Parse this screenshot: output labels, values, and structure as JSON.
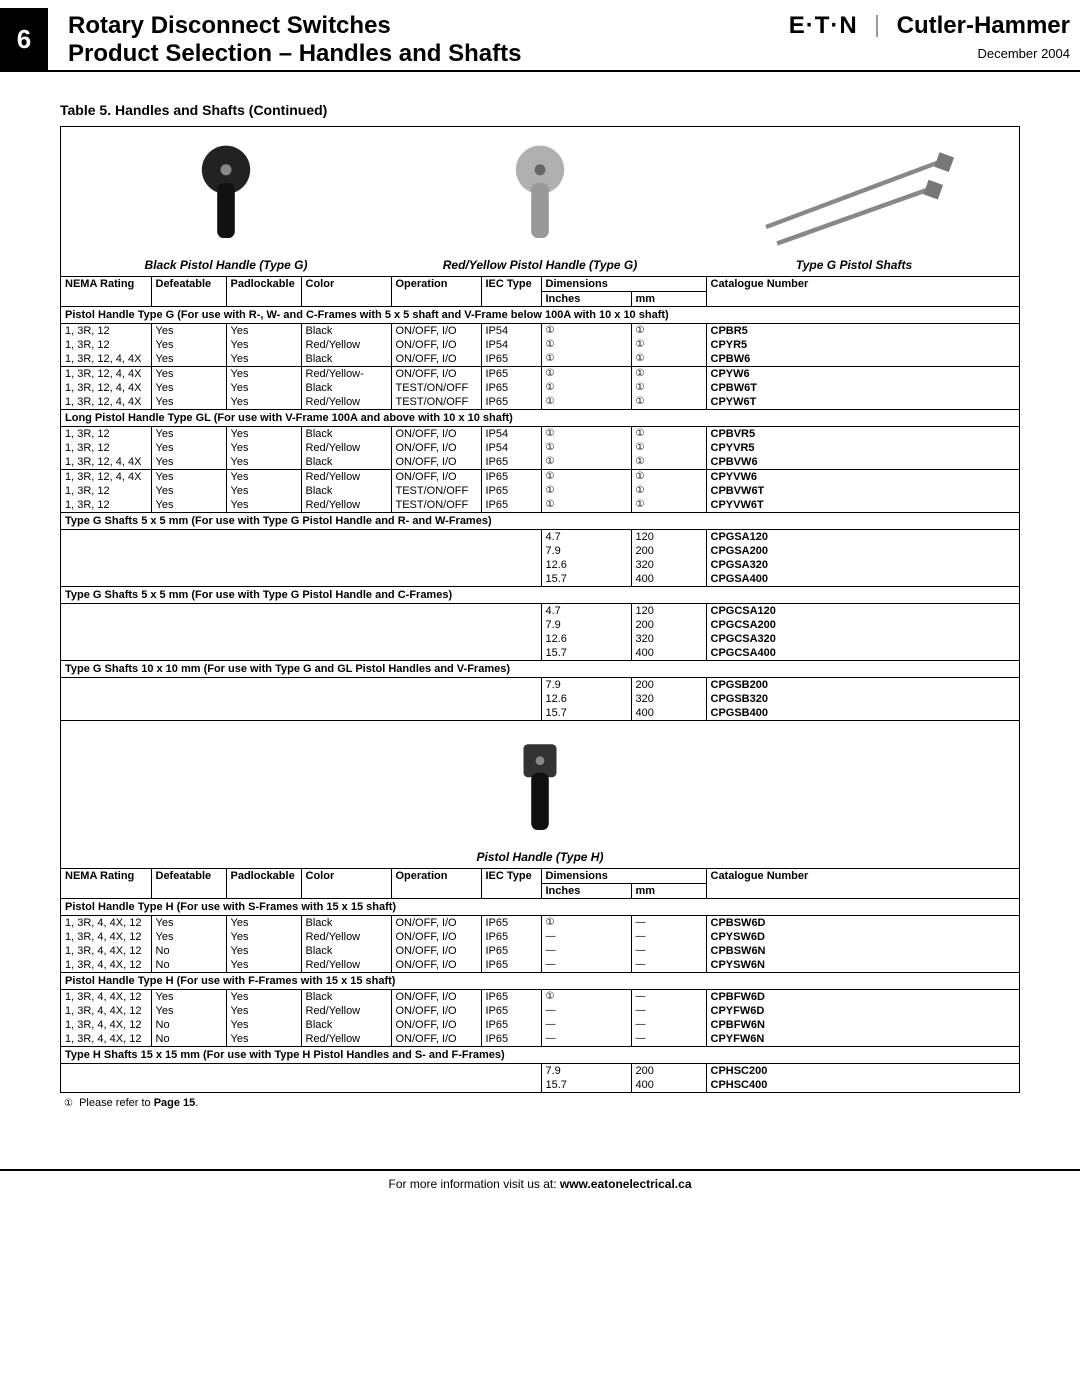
{
  "page_number": "6",
  "title_line1": "Rotary Disconnect Switches",
  "title_line2": "Product Selection – Handles and Shafts",
  "brand_eaton": "E·T·N",
  "brand_cutler": "Cutler-Hammer",
  "date": "December 2004",
  "table_title": "Table 5. Handles and Shafts (Continued)",
  "captions": {
    "black_g": "Black Pistol Handle (Type G)",
    "red_g": "Red/Yellow Pistol Handle (Type G)",
    "shafts_g": "Type G Pistol Shafts",
    "h": "Pistol Handle (Type H)"
  },
  "columns": {
    "nema": "NEMA Rating",
    "defeat": "Defeatable",
    "padlock": "Padlockable",
    "color": "Color",
    "operation": "Operation",
    "iec": "IEC Type",
    "dimensions": "Dimensions",
    "inches": "Inches",
    "mm": "mm",
    "catalogue": "Catalogue Number"
  },
  "sections": {
    "s1": "Pistol Handle Type G (For use with R-, W- and C-Frames with 5 x 5 shaft and V-Frame below 100A with 10 x 10 shaft)",
    "s2": "Long Pistol Handle Type GL (For use with V-Frame 100A and above with 10 x 10 shaft)",
    "s3": "Type G Shafts 5 x 5 mm (For use with Type G Pistol Handle and R- and W-Frames)",
    "s4": "Type G Shafts  5 x 5 mm (For use with Type G Pistol Handle and C-Frames)",
    "s5": "Type G Shafts 10 x 10 mm (For use with Type G and GL Pistol Handles and V-Frames)",
    "s6": "Pistol Handle Type H (For use with S-Frames with 15 x 15 shaft)",
    "s7": "Pistol Handle Type H (For use with F-Frames with 15 x 15 shaft)",
    "s8": "Type H Shafts 15 x 15 mm (For use with Type H Pistol Handles and S- and F-Frames)"
  },
  "circ": "①",
  "dash": "—",
  "rows_g1a": [
    {
      "nema": "1, 3R, 12",
      "def": "Yes",
      "pad": "Yes",
      "color": "Black",
      "op": "ON/OFF, I/O",
      "iec": "IP54",
      "in": "①",
      "mm": "①",
      "cat": "CPBR5"
    },
    {
      "nema": "1, 3R, 12",
      "def": "Yes",
      "pad": "Yes",
      "color": "Red/Yellow",
      "op": "ON/OFF, I/O",
      "iec": "IP54",
      "in": "①",
      "mm": "①",
      "cat": "CPYR5"
    },
    {
      "nema": "1, 3R, 12, 4, 4X",
      "def": "Yes",
      "pad": "Yes",
      "color": "Black",
      "op": "ON/OFF, I/O",
      "iec": "IP65",
      "in": "①",
      "mm": "①",
      "cat": "CPBW6"
    }
  ],
  "rows_g1b": [
    {
      "nema": "1, 3R, 12, 4, 4X",
      "def": "Yes",
      "pad": "Yes",
      "color": "Red/Yellow-",
      "op": "ON/OFF, I/O",
      "iec": "IP65",
      "in": "①",
      "mm": "①",
      "cat": "CPYW6"
    },
    {
      "nema": "1, 3R, 12, 4, 4X",
      "def": "Yes",
      "pad": "Yes",
      "color": "Black",
      "op": "TEST/ON/OFF",
      "iec": "IP65",
      "in": "①",
      "mm": "①",
      "cat": "CPBW6T"
    },
    {
      "nema": "1, 3R, 12, 4, 4X",
      "def": "Yes",
      "pad": "Yes",
      "color": "Red/Yellow",
      "op": "TEST/ON/OFF",
      "iec": "IP65",
      "in": "①",
      "mm": "①",
      "cat": "CPYW6T"
    }
  ],
  "rows_g2a": [
    {
      "nema": "1, 3R, 12",
      "def": "Yes",
      "pad": "Yes",
      "color": "Black",
      "op": "ON/OFF, I/O",
      "iec": "IP54",
      "in": "①",
      "mm": "①",
      "cat": "CPBVR5"
    },
    {
      "nema": "1, 3R, 12",
      "def": "Yes",
      "pad": "Yes",
      "color": "Red/Yellow",
      "op": "ON/OFF, I/O",
      "iec": "IP54",
      "in": "①",
      "mm": "①",
      "cat": "CPYVR5"
    },
    {
      "nema": "1, 3R, 12, 4, 4X",
      "def": "Yes",
      "pad": "Yes",
      "color": "Black",
      "op": "ON/OFF, I/O",
      "iec": "IP65",
      "in": "①",
      "mm": "①",
      "cat": "CPBVW6"
    }
  ],
  "rows_g2b": [
    {
      "nema": "1, 3R, 12, 4, 4X",
      "def": "Yes",
      "pad": "Yes",
      "color": "Red/Yellow",
      "op": "ON/OFF, I/O",
      "iec": "IP65",
      "in": "①",
      "mm": "①",
      "cat": "CPYVW6"
    },
    {
      "nema": "1, 3R, 12",
      "def": "Yes",
      "pad": "Yes",
      "color": "Black",
      "op": "TEST/ON/OFF",
      "iec": "IP65",
      "in": "①",
      "mm": "①",
      "cat": "CPBVW6T"
    },
    {
      "nema": "1, 3R, 12",
      "def": "Yes",
      "pad": "Yes",
      "color": "Red/Yellow",
      "op": "TEST/ON/OFF",
      "iec": "IP65",
      "in": "①",
      "mm": "①",
      "cat": "CPYVW6T"
    }
  ],
  "rows_s3": [
    {
      "in": "4.7",
      "mm": "120",
      "cat": "CPGSA120"
    },
    {
      "in": "7.9",
      "mm": "200",
      "cat": "CPGSA200"
    },
    {
      "in": "12.6",
      "mm": "320",
      "cat": "CPGSA320"
    },
    {
      "in": "15.7",
      "mm": "400",
      "cat": "CPGSA400"
    }
  ],
  "rows_s4": [
    {
      "in": "4.7",
      "mm": "120",
      "cat": "CPGCSA120"
    },
    {
      "in": "7.9",
      "mm": "200",
      "cat": "CPGCSA200"
    },
    {
      "in": "12.6",
      "mm": "320",
      "cat": "CPGCSA320"
    },
    {
      "in": "15.7",
      "mm": "400",
      "cat": "CPGCSA400"
    }
  ],
  "rows_s5": [
    {
      "in": "7.9",
      "mm": "200",
      "cat": "CPGSB200"
    },
    {
      "in": "12.6",
      "mm": "320",
      "cat": "CPGSB320"
    },
    {
      "in": "15.7",
      "mm": "400",
      "cat": "CPGSB400"
    }
  ],
  "rows_h1": [
    {
      "nema": "1, 3R, 4, 4X, 12",
      "def": "Yes",
      "pad": "Yes",
      "color": "Black",
      "op": "ON/OFF, I/O",
      "iec": "IP65",
      "in": "①",
      "mm": "—",
      "cat": "CPBSW6D"
    },
    {
      "nema": "1, 3R, 4, 4X, 12",
      "def": "Yes",
      "pad": "Yes",
      "color": "Red/Yellow",
      "op": "ON/OFF, I/O",
      "iec": "IP65",
      "in": "—",
      "mm": "—",
      "cat": "CPYSW6D"
    },
    {
      "nema": "1, 3R, 4, 4X, 12",
      "def": "No",
      "pad": "Yes",
      "color": "Black",
      "op": "ON/OFF, I/O",
      "iec": "IP65",
      "in": "—",
      "mm": "—",
      "cat": "CPBSW6N"
    },
    {
      "nema": "1, 3R, 4, 4X, 12",
      "def": "No",
      "pad": "Yes",
      "color": "Red/Yellow",
      "op": "ON/OFF, I/O",
      "iec": "IP65",
      "in": "—",
      "mm": "—",
      "cat": "CPYSW6N"
    }
  ],
  "rows_h2": [
    {
      "nema": "1, 3R, 4, 4X, 12",
      "def": "Yes",
      "pad": "Yes",
      "color": "Black",
      "op": "ON/OFF, I/O",
      "iec": "IP65",
      "in": "①",
      "mm": "—",
      "cat": "CPBFW6D"
    },
    {
      "nema": "1, 3R, 4, 4X, 12",
      "def": "Yes",
      "pad": "Yes",
      "color": "Red/Yellow",
      "op": "ON/OFF, I/O",
      "iec": "IP65",
      "in": "—",
      "mm": "—",
      "cat": "CPYFW6D"
    },
    {
      "nema": "1, 3R, 4, 4X, 12",
      "def": "No",
      "pad": "Yes",
      "color": "Black",
      "op": "ON/OFF, I/O",
      "iec": "IP65",
      "in": "—",
      "mm": "—",
      "cat": "CPBFW6N"
    },
    {
      "nema": "1, 3R, 4, 4X, 12",
      "def": "No",
      "pad": "Yes",
      "color": "Red/Yellow",
      "op": "ON/OFF, I/O",
      "iec": "IP65",
      "in": "—",
      "mm": "—",
      "cat": "CPYFW6N"
    }
  ],
  "rows_s8": [
    {
      "in": "7.9",
      "mm": "200",
      "cat": "CPHSC200"
    },
    {
      "in": "15.7",
      "mm": "400",
      "cat": "CPHSC400"
    }
  ],
  "footnote_mark": "①",
  "footnote_text": "Please refer to ",
  "footnote_bold": "Page 15",
  "footer_pre": "For more information visit us at: ",
  "footer_url": "www.eatonelectrical.ca"
}
